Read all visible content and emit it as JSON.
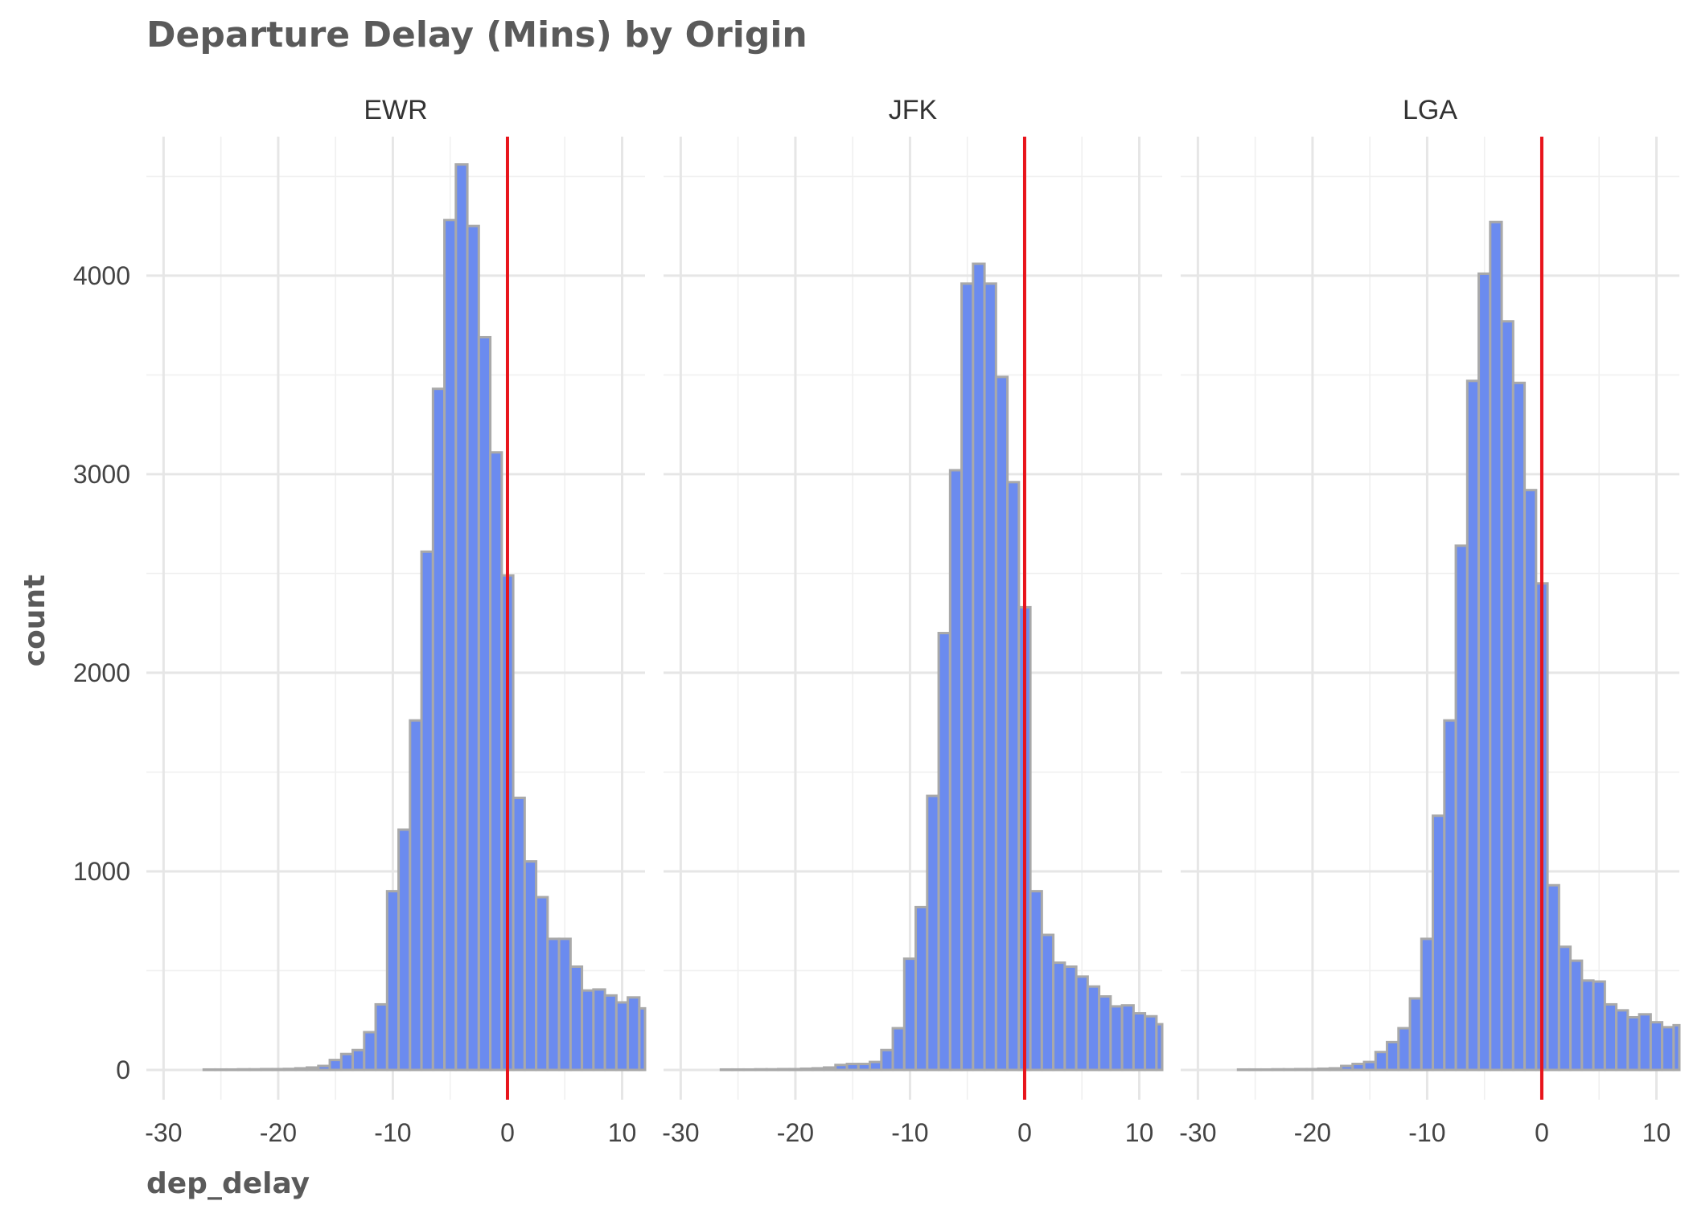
{
  "chart_data": {
    "type": "bar",
    "title": "Departure Delay (Mins) by Origin",
    "xlabel": "dep_delay",
    "ylabel": "count",
    "xlim": [
      -31.5,
      12
    ],
    "ylim": [
      -150,
      4700
    ],
    "x_ticks": [
      -30,
      -20,
      -10,
      0,
      10
    ],
    "y_ticks": [
      0,
      1000,
      2000,
      3000,
      4000
    ],
    "grid": true,
    "reference_line_x": 0,
    "bin_width": 1,
    "bin_centers": [
      -26,
      -25,
      -24,
      -23,
      -22,
      -21,
      -20,
      -19,
      -18,
      -17,
      -16,
      -15,
      -14,
      -13,
      -12,
      -11,
      -10,
      -9,
      -8,
      -7,
      -6,
      -5,
      -4,
      -3,
      -2,
      -1,
      0,
      1,
      2,
      3,
      4,
      5,
      6,
      7,
      8,
      9,
      10,
      11,
      12
    ],
    "colors": {
      "fill": "#6b8bef",
      "outline": "#a9a9a9",
      "reference_line": "#e8141b"
    },
    "panels": [
      {
        "label": "EWR",
        "values": [
          2,
          2,
          2,
          3,
          3,
          4,
          4,
          5,
          8,
          12,
          20,
          50,
          80,
          100,
          190,
          330,
          900,
          1210,
          1760,
          2610,
          3430,
          4280,
          4560,
          4250,
          3690,
          3110,
          2490,
          1370,
          1050,
          870,
          660,
          660,
          520,
          400,
          405,
          375,
          340,
          365,
          310
        ]
      },
      {
        "label": "JFK",
        "values": [
          2,
          2,
          2,
          3,
          3,
          4,
          4,
          6,
          8,
          12,
          25,
          30,
          30,
          40,
          100,
          210,
          560,
          820,
          1380,
          2200,
          3020,
          3960,
          4060,
          3960,
          3490,
          2960,
          2330,
          900,
          680,
          540,
          520,
          470,
          420,
          370,
          320,
          325,
          285,
          270,
          230
        ]
      },
      {
        "label": "LGA",
        "values": [
          2,
          2,
          2,
          3,
          3,
          4,
          4,
          6,
          8,
          20,
          30,
          40,
          90,
          140,
          210,
          360,
          660,
          1280,
          1760,
          2640,
          3470,
          4010,
          4270,
          3770,
          3460,
          2920,
          2450,
          930,
          620,
          550,
          450,
          445,
          330,
          300,
          265,
          280,
          240,
          215,
          225
        ]
      }
    ]
  }
}
